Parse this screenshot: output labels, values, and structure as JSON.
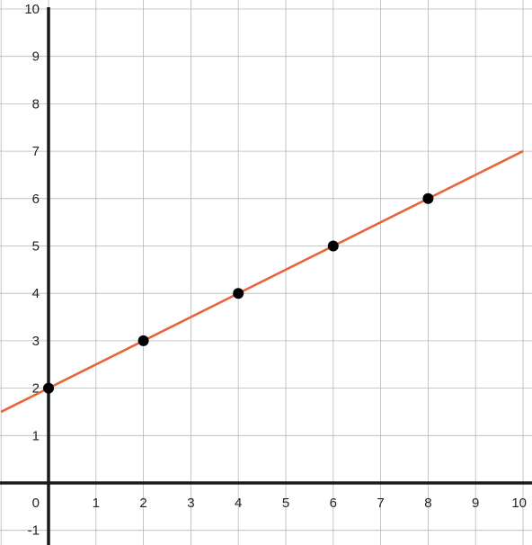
{
  "chart_data": {
    "type": "line",
    "title": "",
    "xlabel": "",
    "ylabel": "",
    "xlim": [
      0,
      10
    ],
    "ylim": [
      -1,
      10
    ],
    "x_ticks": [
      0,
      1,
      2,
      3,
      4,
      5,
      6,
      7,
      8,
      9,
      10
    ],
    "y_ticks": [
      -1,
      1,
      2,
      3,
      4,
      5,
      6,
      7,
      8,
      9,
      10
    ],
    "grid": true,
    "points": [
      {
        "x": 0,
        "y": 2
      },
      {
        "x": 2,
        "y": 3
      },
      {
        "x": 4,
        "y": 4
      },
      {
        "x": 6,
        "y": 5
      },
      {
        "x": 8,
        "y": 6
      }
    ],
    "line": {
      "slope": 0.5,
      "intercept": 2,
      "x_range": [
        -1,
        10
      ]
    },
    "colors": {
      "line": "#e8643a",
      "points": "#000000",
      "axes": "#1a1a1a",
      "grid": "#b8b8b8"
    }
  }
}
